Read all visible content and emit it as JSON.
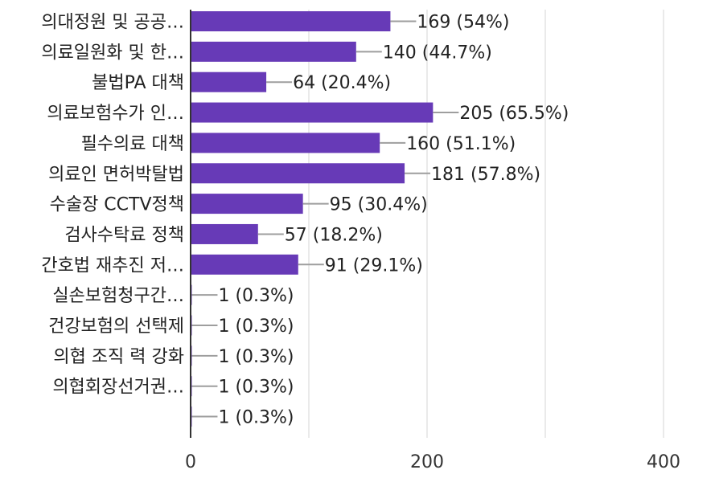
{
  "chart_data": {
    "type": "bar",
    "orientation": "horizontal",
    "categories": [
      "의대정원 및 공공…",
      "의료일원화 및 한…",
      "불법PA 대책",
      "의료보험수가 인…",
      "필수의료 대책",
      "의료인 면허박탈법",
      "수술장 CCTV정책",
      "검사수탁료 정책",
      "간호법 재추진 저…",
      "실손보험청구간…",
      "건강보험의 선택제",
      "의협 조직 력 강화",
      "의협회장선거권…",
      ""
    ],
    "values": [
      169,
      140,
      64,
      205,
      160,
      181,
      95,
      57,
      91,
      1,
      1,
      1,
      1,
      1
    ],
    "data_labels": [
      "169 (54%)",
      "140 (44.7%)",
      "64 (20.4%)",
      "205 (65.5%)",
      "160 (51.1%)",
      "181 (57.8%)",
      "95 (30.4%)",
      "57 (18.2%)",
      "91 (29.1%)",
      "1 (0.3%)",
      "1 (0.3%)",
      "1 (0.3%)",
      "1 (0.3%)",
      "1 (0.3%)"
    ],
    "xlim": [
      0,
      400
    ],
    "xticks": [
      "0",
      "200",
      "400"
    ],
    "grid": "vertical",
    "bar_color": "#673AB7"
  }
}
